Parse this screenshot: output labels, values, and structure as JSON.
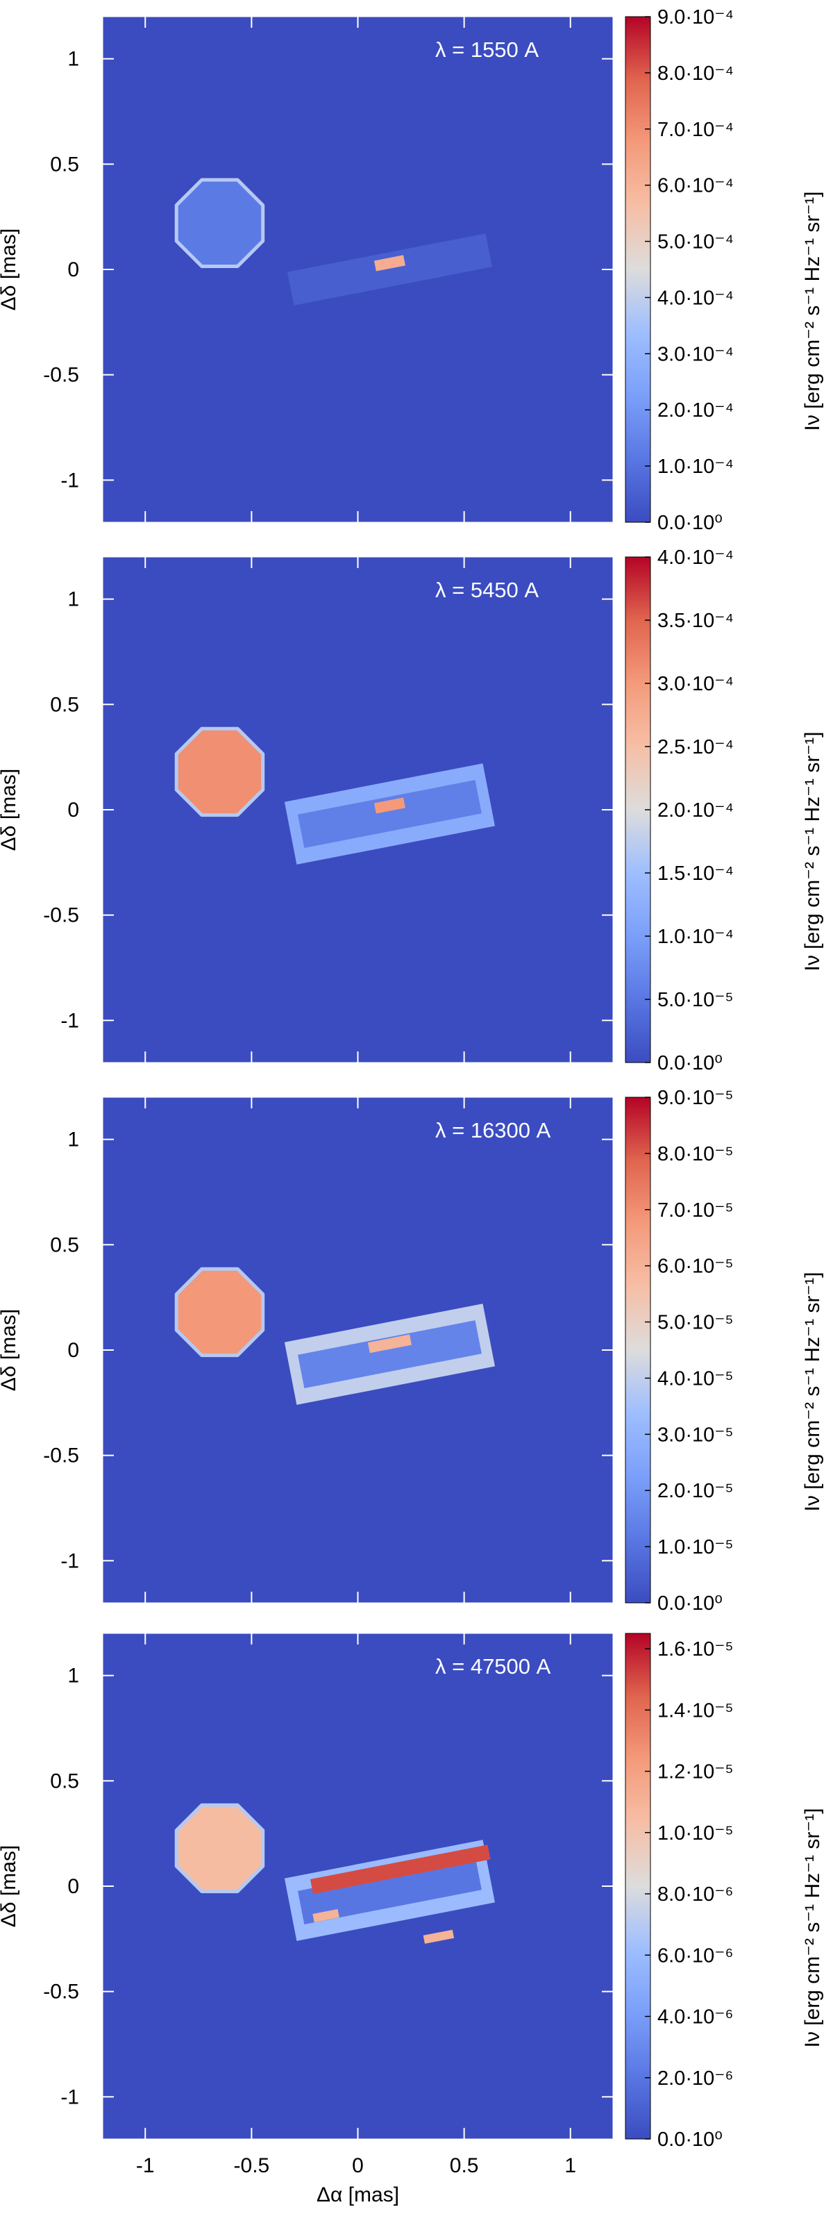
{
  "chart_data": [
    {
      "type": "heatmap",
      "label": "λ =  1550 A",
      "xlim": [
        -1.2,
        1.2
      ],
      "ylim": [
        -1.2,
        1.2
      ],
      "x_ticks": [],
      "y_ticks": [
        "1",
        "0.5",
        "0",
        "-0.5",
        "-1"
      ],
      "ylabel": "Δδ [mas]",
      "xlabel": "",
      "colorbar": {
        "label": "Iν [erg cm⁻² s⁻¹ Hz⁻¹ sr⁻¹]",
        "range": [
          0,
          0.0009
        ],
        "tick_values": [
          0,
          0.0001,
          0.0002,
          0.0003,
          0.0004,
          0.0005,
          0.0006,
          0.0007,
          0.0008,
          0.0009
        ],
        "tick_labels": [
          "0.0·10⁰",
          "1.0·10⁻⁴",
          "2.0·10⁻⁴",
          "3.0·10⁻⁴",
          "4.0·10⁻⁴",
          "5.0·10⁻⁴",
          "6.0·10⁻⁴",
          "7.0·10⁻⁴",
          "8.0·10⁻⁴",
          "9.0·10⁻⁴"
        ]
      },
      "features": [
        {
          "name": "star",
          "center": [
            -0.65,
            0.22
          ],
          "radius": 0.22,
          "value": 0.00012
        },
        {
          "name": "disk-outer",
          "center": [
            0.15,
            0.0
          ],
          "length": 0.95,
          "width": 0.16,
          "angle": -11,
          "value": 5e-05
        },
        {
          "name": "core",
          "center": [
            0.15,
            0.03
          ],
          "length": 0.14,
          "width": 0.05,
          "angle": -11,
          "value": 0.00062
        }
      ]
    },
    {
      "type": "heatmap",
      "label": "λ =  5450 A",
      "xlim": [
        -1.2,
        1.2
      ],
      "ylim": [
        -1.2,
        1.2
      ],
      "x_ticks": [],
      "y_ticks": [
        "1",
        "0.5",
        "0",
        "-0.5",
        "-1"
      ],
      "ylabel": "Δδ [mas]",
      "xlabel": "",
      "colorbar": {
        "label": "Iν [erg cm⁻² s⁻¹ Hz⁻¹ sr⁻¹]",
        "range": [
          0,
          0.0004
        ],
        "tick_values": [
          0,
          5e-05,
          0.0001,
          0.00015,
          0.0002,
          0.00025,
          0.0003,
          0.00035,
          0.0004
        ],
        "tick_labels": [
          "0.0·10⁰",
          "5.0·10⁻⁵",
          "1.0·10⁻⁴",
          "1.5·10⁻⁴",
          "2.0·10⁻⁴",
          "2.5·10⁻⁴",
          "3.0·10⁻⁴",
          "3.5·10⁻⁴",
          "4.0·10⁻⁴"
        ]
      },
      "features": [
        {
          "name": "star",
          "center": [
            -0.65,
            0.18
          ],
          "radius": 0.22,
          "value": 0.00031
        },
        {
          "name": "disk-outer",
          "center": [
            0.15,
            -0.02
          ],
          "length": 0.95,
          "width": 0.3,
          "angle": -11,
          "value": 0.00012
        },
        {
          "name": "disk-inner",
          "center": [
            0.15,
            -0.02
          ],
          "length": 0.85,
          "width": 0.16,
          "angle": -11,
          "value": 6e-05
        },
        {
          "name": "core",
          "center": [
            0.15,
            0.02
          ],
          "length": 0.14,
          "width": 0.05,
          "angle": -11,
          "value": 0.0003
        }
      ]
    },
    {
      "type": "heatmap",
      "label": "λ =  16300 A",
      "xlim": [
        -1.2,
        1.2
      ],
      "ylim": [
        -1.2,
        1.2
      ],
      "x_ticks": [],
      "y_ticks": [
        "1",
        "0.5",
        "0",
        "-0.5",
        "-1"
      ],
      "ylabel": "Δδ [mas]",
      "xlabel": "",
      "colorbar": {
        "label": "Iν [erg cm⁻² s⁻¹ Hz⁻¹ sr⁻¹]",
        "range": [
          0,
          9e-05
        ],
        "tick_values": [
          0,
          1e-05,
          2e-05,
          3e-05,
          4e-05,
          5e-05,
          6e-05,
          7e-05,
          8e-05,
          9e-05
        ],
        "tick_labels": [
          "0.0·10⁰",
          "1.0·10⁻⁵",
          "2.0·10⁻⁵",
          "3.0·10⁻⁵",
          "4.0·10⁻⁵",
          "5.0·10⁻⁵",
          "6.0·10⁻⁵",
          "7.0·10⁻⁵",
          "8.0·10⁻⁵",
          "9.0·10⁻⁵"
        ]
      },
      "features": [
        {
          "name": "star",
          "center": [
            -0.65,
            0.18
          ],
          "radius": 0.22,
          "value": 6.8e-05
        },
        {
          "name": "disk-outer",
          "center": [
            0.15,
            -0.02
          ],
          "length": 0.95,
          "width": 0.3,
          "angle": -11,
          "value": 4e-05
        },
        {
          "name": "disk-inner",
          "center": [
            0.15,
            -0.02
          ],
          "length": 0.85,
          "width": 0.16,
          "angle": -11,
          "value": 1.5e-05
        },
        {
          "name": "core",
          "center": [
            0.15,
            0.03
          ],
          "length": 0.2,
          "width": 0.05,
          "angle": -11,
          "value": 6e-05
        }
      ]
    },
    {
      "type": "heatmap",
      "label": "λ =  47500 A",
      "xlim": [
        -1.2,
        1.2
      ],
      "ylim": [
        -1.2,
        1.2
      ],
      "x_ticks": [
        "-1",
        "-0.5",
        "0",
        "0.5",
        "1"
      ],
      "y_ticks": [
        "1",
        "0.5",
        "0",
        "-0.5",
        "-1"
      ],
      "ylabel": "Δδ [mas]",
      "xlabel": "Δα [mas]",
      "colorbar": {
        "label": "Iν [erg cm⁻² s⁻¹ Hz⁻¹ sr⁻¹]",
        "range": [
          0,
          1.65e-05
        ],
        "tick_values": [
          0,
          2e-06,
          4e-06,
          6e-06,
          8e-06,
          1e-05,
          1.2e-05,
          1.4e-05,
          1.6e-05
        ],
        "tick_labels": [
          "0.0·10⁰",
          "2.0·10⁻⁶",
          "4.0·10⁻⁶",
          "6.0·10⁻⁶",
          "8.0·10⁻⁶",
          "1.0·10⁻⁵",
          "1.2·10⁻⁵",
          "1.4·10⁻⁵",
          "1.6·10⁻⁵"
        ]
      },
      "features": [
        {
          "name": "star",
          "center": [
            -0.65,
            0.18
          ],
          "radius": 0.22,
          "value": 1.05e-05
        },
        {
          "name": "disk-outer",
          "center": [
            0.15,
            -0.02
          ],
          "length": 0.95,
          "width": 0.3,
          "angle": -11,
          "value": 6e-06
        },
        {
          "name": "disk-inner",
          "center": [
            0.15,
            -0.02
          ],
          "length": 0.85,
          "width": 0.16,
          "angle": -11,
          "value": 2e-06
        },
        {
          "name": "disk-top-band",
          "center": [
            0.2,
            0.08
          ],
          "length": 0.85,
          "width": 0.07,
          "angle": -11,
          "value": 1.5e-05
        },
        {
          "name": "disk-bottom-spot-left",
          "center": [
            -0.15,
            -0.14
          ],
          "length": 0.12,
          "width": 0.04,
          "angle": -11,
          "value": 1.1e-05
        },
        {
          "name": "disk-bottom-spot-right",
          "center": [
            0.38,
            -0.24
          ],
          "length": 0.14,
          "width": 0.04,
          "angle": -11,
          "value": 1.1e-05
        }
      ]
    }
  ]
}
